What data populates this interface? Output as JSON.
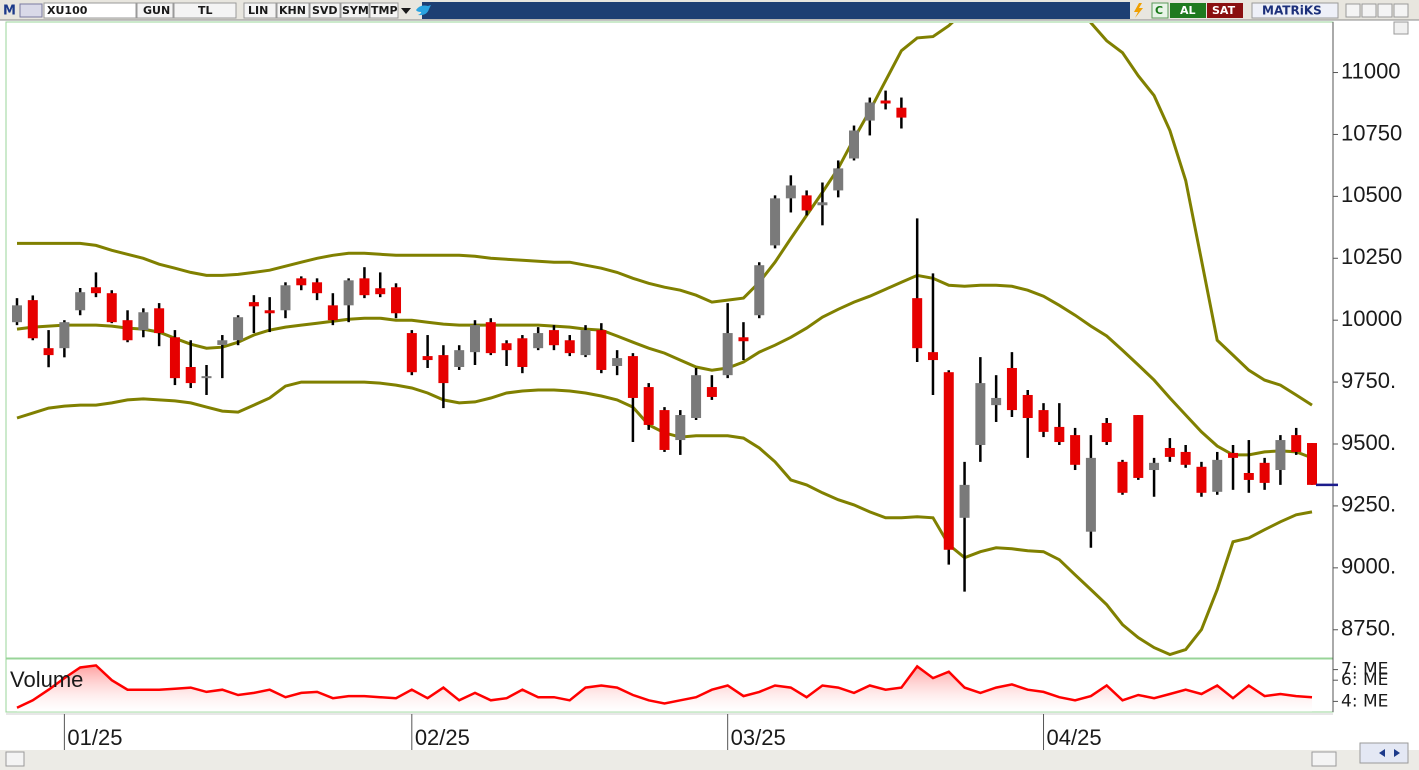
{
  "toolbar": {
    "logo": "M",
    "symbol": "XU100",
    "buttons": [
      "GUN",
      "TL",
      "LIN",
      "KHN",
      "SVD",
      "SYM",
      "TMP"
    ],
    "quick": [
      "C",
      "AL",
      "SAT"
    ],
    "brand": "MATRiKS"
  },
  "chart_data": [
    {
      "type": "candlestick",
      "categories": [
        null,
        null,
        null,
        "01/25",
        null,
        null,
        null,
        null,
        null,
        null,
        null,
        null,
        null,
        null,
        null,
        null,
        null,
        null,
        null,
        null,
        null,
        null,
        null,
        null,
        null,
        "02/25",
        null,
        null,
        null,
        null,
        null,
        null,
        null,
        null,
        null,
        null,
        null,
        null,
        null,
        null,
        null,
        null,
        null,
        null,
        null,
        "03/25",
        null,
        null,
        null,
        null,
        null,
        null,
        null,
        null,
        null,
        null,
        null,
        null,
        null,
        null,
        null,
        null,
        null,
        null,
        null,
        "04/25",
        null,
        null,
        null,
        null,
        null,
        null,
        null,
        null,
        null,
        null,
        null,
        null,
        null,
        null,
        null,
        null,
        null
      ],
      "open": [
        9992,
        10081,
        9887,
        9887,
        10040,
        10133,
        10109,
        10000,
        9960,
        10048,
        9931,
        9811,
        9766,
        9900,
        9919,
        10073,
        10040,
        10040,
        10169,
        10153,
        10060,
        10060,
        10169,
        10129,
        10133,
        9948,
        9855,
        9859,
        9811,
        9871,
        9992,
        9907,
        9927,
        9887,
        9960,
        9919,
        9859,
        9960,
        9815,
        9855,
        9730,
        9637,
        9516,
        9605,
        9730,
        9778,
        9931,
        10020,
        10302,
        10492,
        10504,
        10464,
        10524,
        10653,
        10806,
        10887,
        10858,
        10089,
        9871,
        9790,
        9202,
        9496,
        9657,
        9807,
        9698,
        9637,
        9569,
        9536,
        9146,
        9585,
        9428,
        9617,
        9395,
        9484,
        9468,
        9408,
        9307,
        9464,
        9383,
        9424,
        9395,
        9536,
        9504
      ],
      "high": [
        10089,
        10100,
        9960,
        10000,
        10130,
        10193,
        10121,
        10040,
        10048,
        10069,
        9960,
        9919,
        9819,
        9940,
        10020,
        10101,
        10093,
        10153,
        10177,
        10169,
        10109,
        10169,
        10214,
        10193,
        10149,
        9960,
        9940,
        9899,
        9899,
        10000,
        10008,
        9919,
        9940,
        9972,
        9980,
        9940,
        9980,
        9988,
        9879,
        9867,
        9746,
        9649,
        9637,
        9807,
        9778,
        10069,
        9992,
        10234,
        10504,
        10585,
        10524,
        10556,
        10645,
        10786,
        10899,
        10927,
        10899,
        10411,
        10189,
        9798,
        9428,
        9851,
        9778,
        9871,
        9718,
        9665,
        9665,
        9565,
        9536,
        9605,
        9436,
        9617,
        9444,
        9524,
        9496,
        9428,
        9468,
        9496,
        9516,
        9444,
        9536,
        9565,
        9504
      ],
      "low": [
        9980,
        9919,
        9810,
        9850,
        10020,
        10093,
        9988,
        9911,
        9931,
        9895,
        9738,
        9726,
        9698,
        9766,
        9899,
        9948,
        9952,
        10008,
        10121,
        10081,
        9980,
        9992,
        10089,
        10093,
        10008,
        9778,
        9807,
        9645,
        9799,
        9819,
        9859,
        9815,
        9786,
        9879,
        9879,
        9855,
        9851,
        9786,
        9778,
        9508,
        9557,
        9468,
        9456,
        9597,
        9678,
        9766,
        9839,
        10008,
        10290,
        10435,
        10423,
        10383,
        10496,
        10645,
        10746,
        10851,
        10774,
        9831,
        9698,
        9013,
        8904,
        9428,
        9589,
        9609,
        9444,
        9528,
        9496,
        9395,
        9081,
        9496,
        9295,
        9355,
        9287,
        9428,
        9404,
        9287,
        9295,
        9315,
        9303,
        9315,
        9335,
        9456,
        9335
      ],
      "close": [
        10060,
        9927,
        9859,
        9992,
        10113,
        10109,
        9992,
        9919,
        10032,
        9948,
        9766,
        9746,
        9774,
        9919,
        10012,
        10056,
        10028,
        10141,
        10141,
        10109,
        10000,
        10161,
        10101,
        10105,
        10028,
        9790,
        9839,
        9746,
        9879,
        9980,
        9867,
        9879,
        9811,
        9948,
        9899,
        9867,
        9960,
        9799,
        9847,
        9686,
        9577,
        9476,
        9617,
        9778,
        9690,
        9948,
        9915,
        10222,
        10492,
        10544,
        10443,
        10476,
        10613,
        10766,
        10879,
        10875,
        10818,
        9887,
        9839,
        9073,
        9335,
        9746,
        9686,
        9637,
        9605,
        9549,
        9508,
        9416,
        9444,
        9508,
        9303,
        9363,
        9424,
        9448,
        9416,
        9303,
        9436,
        9444,
        9355,
        9343,
        9516,
        9468,
        9335
      ],
      "up_color": "#7a7a7a",
      "down_color": "#e60000",
      "bands": [
        {
          "color": "#808000",
          "values": [
            10310,
            10310,
            10310,
            10310,
            10310,
            10302,
            10282,
            10266,
            10250,
            10226,
            10210,
            10193,
            10181,
            10181,
            10185,
            10193,
            10202,
            10218,
            10234,
            10250,
            10262,
            10270,
            10270,
            10266,
            10262,
            10262,
            10262,
            10262,
            10262,
            10258,
            10250,
            10246,
            10242,
            10238,
            10234,
            10234,
            10222,
            10210,
            10193,
            10169,
            10149,
            10133,
            10121,
            10101,
            10073,
            10081,
            10089,
            10153,
            10234,
            10330,
            10423,
            10516,
            10613,
            10733,
            10846,
            10967,
            11088,
            11140,
            11145,
            11189,
            11249,
            11330,
            11410,
            11451,
            11471,
            11451,
            11390,
            11290,
            11201,
            11128,
            11080,
            10987,
            10907,
            10766,
            10564,
            10242,
            9919,
            9859,
            9798,
            9758,
            9738,
            9698,
            9657
          ]
        },
        {
          "color": "#808000",
          "values": [
            9964,
            9972,
            9976,
            9980,
            9980,
            9980,
            9976,
            9968,
            9964,
            9952,
            9927,
            9903,
            9887,
            9891,
            9911,
            9940,
            9960,
            9972,
            9980,
            9988,
            9996,
            10004,
            10008,
            10008,
            10000,
            10000,
            9992,
            9984,
            9980,
            9980,
            9980,
            9980,
            9980,
            9980,
            9976,
            9972,
            9964,
            9960,
            9936,
            9911,
            9887,
            9867,
            9839,
            9811,
            9798,
            9807,
            9831,
            9871,
            9899,
            9931,
            9968,
            10012,
            10044,
            10073,
            10097,
            10125,
            10153,
            10181,
            10169,
            10141,
            10137,
            10141,
            10141,
            10137,
            10121,
            10097,
            10060,
            10020,
            9976,
            9936,
            9879,
            9819,
            9758,
            9686,
            9617,
            9549,
            9492,
            9456,
            9456,
            9468,
            9472,
            9468,
            9444
          ]
        },
        {
          "color": "#808000",
          "values": [
            9605,
            9625,
            9645,
            9653,
            9657,
            9657,
            9666,
            9678,
            9682,
            9678,
            9674,
            9666,
            9649,
            9633,
            9629,
            9657,
            9686,
            9734,
            9750,
            9750,
            9750,
            9750,
            9750,
            9746,
            9738,
            9726,
            9706,
            9678,
            9666,
            9670,
            9686,
            9706,
            9714,
            9718,
            9718,
            9714,
            9706,
            9694,
            9678,
            9649,
            9577,
            9545,
            9528,
            9533,
            9533,
            9533,
            9524,
            9484,
            9428,
            9355,
            9335,
            9303,
            9275,
            9254,
            9226,
            9202,
            9202,
            9206,
            9202,
            9093,
            9041,
            9065,
            9081,
            9077,
            9069,
            9065,
            9033,
            8972,
            8912,
            8851,
            8771,
            8718,
            8678,
            8650,
            8670,
            8751,
            8912,
            9105,
            9121,
            9154,
            9186,
            9214,
            9226
          ]
        }
      ],
      "ylim": [
        8640,
        11200
      ],
      "yticks": [
        11000,
        10750,
        10500,
        10250,
        10000,
        {
          "value": 9750,
          "label": "9750."
        },
        {
          "value": 9500,
          "label": "9500."
        },
        {
          "value": 9250,
          "label": "9250."
        },
        {
          "value": 9000,
          "label": "9000."
        },
        {
          "value": 8750,
          "label": "8750."
        }
      ],
      "last_price_color": "#1c1c8c"
    },
    {
      "type": "area",
      "title": "Volume",
      "color": "#ff0000",
      "values": [
        3.4,
        4.1,
        5.1,
        6.2,
        7.2,
        7.4,
        6.0,
        5.1,
        5.1,
        5.1,
        5.2,
        5.3,
        4.9,
        5.1,
        4.6,
        4.8,
        5.1,
        4.4,
        4.8,
        4.9,
        4.3,
        4.5,
        4.5,
        4.4,
        4.3,
        5.1,
        4.3,
        5.3,
        4.1,
        4.8,
        4.1,
        4.3,
        5.1,
        4.4,
        4.4,
        4.1,
        5.3,
        5.5,
        5.3,
        4.6,
        4.1,
        3.8,
        4.1,
        4.4,
        5.1,
        5.5,
        4.5,
        4.9,
        5.5,
        5.3,
        4.4,
        5.5,
        5.3,
        4.8,
        5.5,
        5.1,
        5.3,
        7.3,
        6.2,
        6.8,
        5.3,
        4.8,
        5.3,
        5.6,
        5.1,
        4.9,
        4.4,
        4.1,
        4.5,
        5.5,
        4.1,
        4.6,
        4.3,
        4.7,
        5.1,
        4.7,
        5.5,
        4.3,
        5.5,
        4.5,
        4.7,
        4.5,
        4.4
      ],
      "ylim": [
        3,
        8
      ],
      "yticks": [
        {
          "value": 7,
          "label": "7: ME"
        },
        {
          "value": 6,
          "label": "6: ME"
        },
        {
          "value": 4,
          "label": "4: ME"
        }
      ]
    }
  ]
}
